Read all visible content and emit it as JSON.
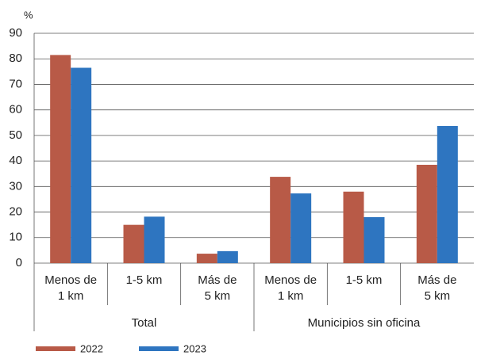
{
  "chart_data": {
    "type": "bar",
    "unit_label": "%",
    "categories": [
      [
        "Menos de",
        "1 km"
      ],
      [
        "1-5 km"
      ],
      [
        "Más de",
        "5 km"
      ],
      [
        "Menos de",
        "1 km"
      ],
      [
        "1-5 km"
      ],
      [
        "Más de",
        "5 km"
      ]
    ],
    "groups": [
      "Total",
      "Municipios sin oficina"
    ],
    "series": [
      {
        "name": "2022",
        "color": "#b85a47",
        "values": [
          81.5,
          15,
          3.7,
          33.8,
          28,
          38.5
        ]
      },
      {
        "name": "2023",
        "color": "#2e75c0",
        "values": [
          76.5,
          18.2,
          4.7,
          27.3,
          18,
          53.7
        ]
      }
    ],
    "ylim": [
      0,
      90
    ],
    "yticks": [
      0,
      10,
      20,
      30,
      40,
      50,
      60,
      70,
      80,
      90
    ],
    "grid": true
  }
}
